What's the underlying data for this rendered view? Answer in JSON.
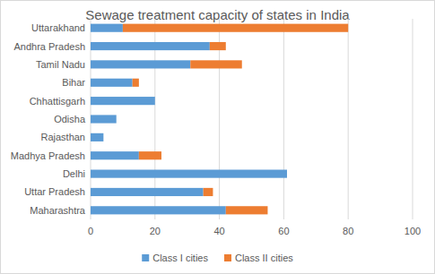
{
  "chart_data": {
    "type": "bar",
    "orientation": "horizontal",
    "stacked": true,
    "title": "Sewage treatment capacity of states in India",
    "categories": [
      "Uttarakhand",
      "Andhra Pradesh",
      "Tamil Nadu",
      "Bihar",
      "Chhattisgarh",
      "Odisha",
      "Rajasthan",
      "Madhya Pradesh",
      "Delhi",
      "Uttar Pradesh",
      "Maharashtra"
    ],
    "series": [
      {
        "name": "Class I cities",
        "color": "#5b9bd5",
        "values": [
          10,
          37,
          31,
          13,
          20,
          8,
          4,
          15,
          61,
          35,
          42
        ]
      },
      {
        "name": "Class II cities",
        "color": "#ed7d31",
        "values": [
          70,
          5,
          16,
          2,
          0,
          0,
          0,
          7,
          0,
          3,
          13
        ]
      }
    ],
    "xlim": [
      0,
      100
    ],
    "xticks": [
      0,
      20,
      40,
      60,
      80,
      100
    ],
    "grid": true,
    "legend": "bottom"
  }
}
